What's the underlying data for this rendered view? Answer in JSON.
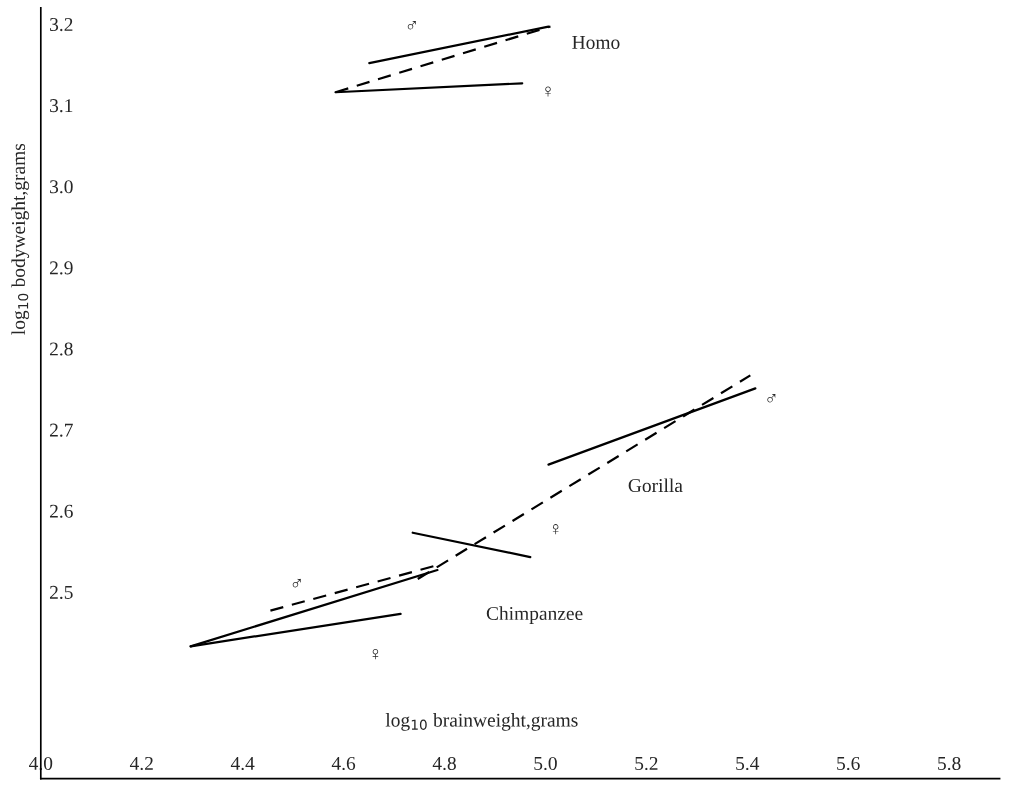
{
  "chart_data": {
    "type": "line",
    "xlabel": "log$_{10}$ brainweight,grams",
    "ylabel": "log$_{10}$ bodyweight,grams",
    "xlim": [
      4.0,
      5.9
    ],
    "ylim": [
      2.27,
      3.22
    ],
    "xticks": [
      {
        "value": 4.0,
        "label": "4.0"
      },
      4.2,
      4.4,
      4.6,
      4.8,
      {
        "value": 5.0,
        "label": "5.0"
      },
      5.2,
      5.4,
      5.6,
      5.8
    ],
    "yticks": [
      2.5,
      2.6,
      2.7,
      2.8,
      2.9,
      {
        "value": 3.0,
        "label": "3.0"
      },
      3.1,
      3.2
    ],
    "grid": false,
    "series": [
      {
        "color": "#000000",
        "line_style": "solid",
        "x": [
          4.651,
          5.006
        ],
        "values": [
          3.152,
          3.197
        ]
      },
      {
        "color": "#000000",
        "line_style": "solid",
        "x": [
          4.584,
          4.954
        ],
        "values": [
          3.116,
          3.127
        ]
      },
      {
        "color": "#000000",
        "line_style": "dashed",
        "x": [
          4.584,
          5.01
        ],
        "values": [
          3.116,
          3.197
        ]
      },
      {
        "color": "#000000",
        "line_style": "solid",
        "x": [
          5.006,
          5.416
        ],
        "values": [
          2.657,
          2.751
        ]
      },
      {
        "color": "#000000",
        "line_style": "solid",
        "x": [
          4.737,
          4.97
        ],
        "values": [
          2.573,
          2.543
        ]
      },
      {
        "color": "#000000",
        "line_style": "dashed",
        "x": [
          4.747,
          5.406
        ],
        "values": [
          2.516,
          2.767
        ]
      },
      {
        "color": "#000000",
        "line_style": "solid",
        "x": [
          4.297,
          4.786
        ],
        "values": [
          2.433,
          2.527
        ]
      },
      {
        "color": "#000000",
        "line_style": "solid",
        "x": [
          4.297,
          4.713
        ],
        "values": [
          2.433,
          2.473
        ]
      },
      {
        "color": "#000000",
        "line_style": "dashed",
        "x": [
          4.455,
          4.786
        ],
        "values": [
          2.477,
          2.533
        ]
      }
    ],
    "annotations": [
      "Homo",
      "♂",
      "♀",
      "Gorilla",
      "♂",
      "♀",
      "Chimpanzee",
      "♂",
      "♀"
    ]
  }
}
